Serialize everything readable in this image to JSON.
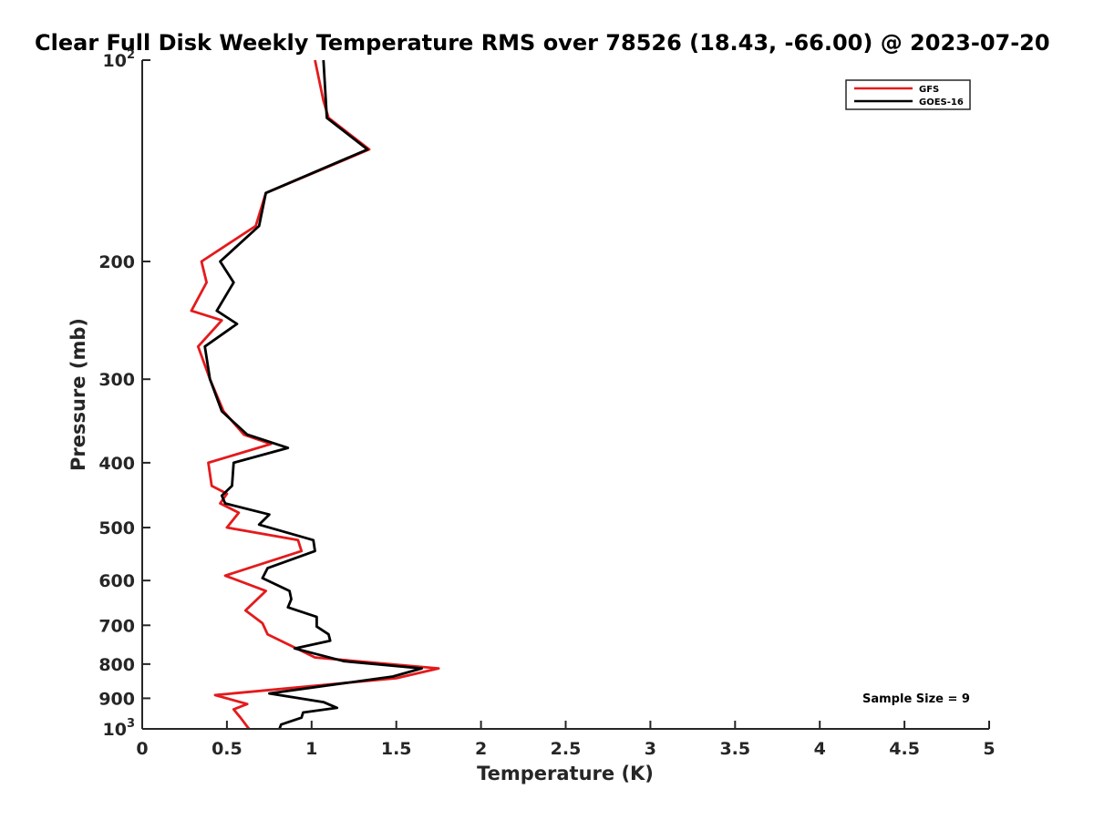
{
  "chart_data": {
    "type": "line",
    "title": "Clear Full Disk Weekly Temperature RMS over 78526 (18.43, -66.00) @ 2023-07-20",
    "xlabel": "Temperature (K)",
    "ylabel": "Pressure (mb)",
    "xlim": [
      0,
      5
    ],
    "ylim": [
      100,
      1000
    ],
    "y_scale": "log",
    "y_reversed": true,
    "x_ticks": [
      0,
      0.5,
      1,
      1.5,
      2,
      2.5,
      3,
      3.5,
      4,
      4.5,
      5
    ],
    "x_tick_labels": [
      "0",
      "0.5",
      "1",
      "1.5",
      "2",
      "2.5",
      "3",
      "3.5",
      "4",
      "4.5",
      "5"
    ],
    "y_ticks": [
      100,
      200,
      300,
      400,
      500,
      600,
      700,
      800,
      900,
      1000
    ],
    "y_tick_labels": [
      {
        "base": "10",
        "sup": "2"
      },
      {
        "base": "200",
        "sup": ""
      },
      {
        "base": "300",
        "sup": ""
      },
      {
        "base": "400",
        "sup": ""
      },
      {
        "base": "500",
        "sup": ""
      },
      {
        "base": "600",
        "sup": ""
      },
      {
        "base": "700",
        "sup": ""
      },
      {
        "base": "800",
        "sup": ""
      },
      {
        "base": "900",
        "sup": ""
      },
      {
        "base": "10",
        "sup": "3"
      }
    ],
    "grid": false,
    "legend_position": "top-right",
    "annotation": "Sample Size = 9",
    "series": [
      {
        "name": "GFS",
        "color": "#e41a1c",
        "points": [
          [
            1.02,
            100
          ],
          [
            1.07,
            115
          ],
          [
            1.1,
            122
          ],
          [
            1.34,
            136
          ],
          [
            0.73,
            158
          ],
          [
            0.67,
            177
          ],
          [
            0.35,
            200
          ],
          [
            0.38,
            215
          ],
          [
            0.29,
            237
          ],
          [
            0.47,
            245
          ],
          [
            0.33,
            268
          ],
          [
            0.4,
            300
          ],
          [
            0.48,
            335
          ],
          [
            0.6,
            363
          ],
          [
            0.76,
            375
          ],
          [
            0.39,
            400
          ],
          [
            0.41,
            433
          ],
          [
            0.5,
            445
          ],
          [
            0.46,
            460
          ],
          [
            0.57,
            475
          ],
          [
            0.5,
            500
          ],
          [
            0.92,
            522
          ],
          [
            0.94,
            542
          ],
          [
            0.49,
            590
          ],
          [
            0.73,
            622
          ],
          [
            0.61,
            665
          ],
          [
            0.71,
            695
          ],
          [
            0.74,
            722
          ],
          [
            0.92,
            760
          ],
          [
            1.02,
            782
          ],
          [
            1.75,
            812
          ],
          [
            1.5,
            840
          ],
          [
            0.43,
            890
          ],
          [
            0.62,
            918
          ],
          [
            0.54,
            935
          ],
          [
            0.58,
            962
          ],
          [
            0.63,
            1000
          ]
        ]
      },
      {
        "name": "GOES-16",
        "color": "#000000",
        "points": [
          [
            1.07,
            100
          ],
          [
            1.09,
            122
          ],
          [
            1.33,
            136
          ],
          [
            0.73,
            158
          ],
          [
            0.69,
            177
          ],
          [
            0.46,
            200
          ],
          [
            0.54,
            215
          ],
          [
            0.44,
            237
          ],
          [
            0.56,
            248
          ],
          [
            0.37,
            268
          ],
          [
            0.4,
            300
          ],
          [
            0.47,
            335
          ],
          [
            0.62,
            363
          ],
          [
            0.86,
            380
          ],
          [
            0.54,
            400
          ],
          [
            0.53,
            433
          ],
          [
            0.47,
            448
          ],
          [
            0.49,
            460
          ],
          [
            0.75,
            478
          ],
          [
            0.69,
            495
          ],
          [
            1.01,
            522
          ],
          [
            1.02,
            542
          ],
          [
            0.74,
            575
          ],
          [
            0.71,
            595
          ],
          [
            0.87,
            622
          ],
          [
            0.88,
            640
          ],
          [
            0.86,
            658
          ],
          [
            1.03,
            680
          ],
          [
            1.03,
            703
          ],
          [
            1.1,
            722
          ],
          [
            1.11,
            738
          ],
          [
            0.9,
            758
          ],
          [
            1.19,
            792
          ],
          [
            1.65,
            812
          ],
          [
            1.48,
            835
          ],
          [
            0.75,
            885
          ],
          [
            1.07,
            912
          ],
          [
            1.15,
            930
          ],
          [
            0.95,
            945
          ],
          [
            0.94,
            962
          ],
          [
            0.82,
            985
          ],
          [
            0.81,
            1000
          ]
        ]
      }
    ]
  }
}
